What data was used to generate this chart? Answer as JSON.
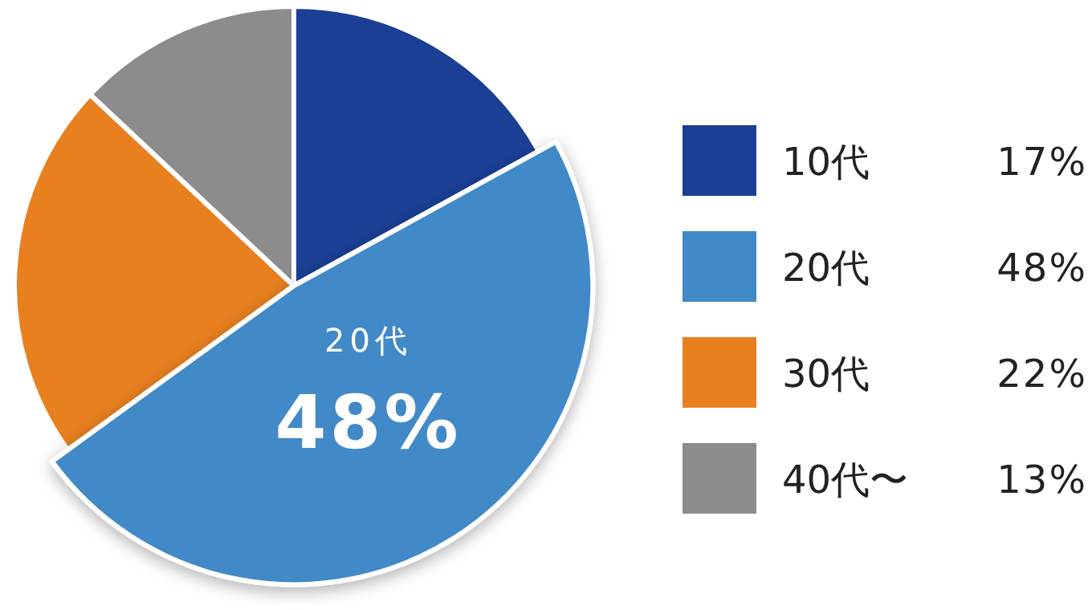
{
  "chart_data": {
    "type": "pie",
    "categories": [
      "10代",
      "20代",
      "30代",
      "40代〜"
    ],
    "values": [
      17,
      48,
      22,
      13
    ],
    "colors": [
      "#1a3f95",
      "#4289c8",
      "#e88020",
      "#8c8c8c"
    ],
    "value_labels": [
      "17%",
      "48%",
      "22%",
      "13%"
    ],
    "legend": "right",
    "annotations": [
      {
        "text": "20代",
        "x": "20代"
      }
    ]
  }
}
